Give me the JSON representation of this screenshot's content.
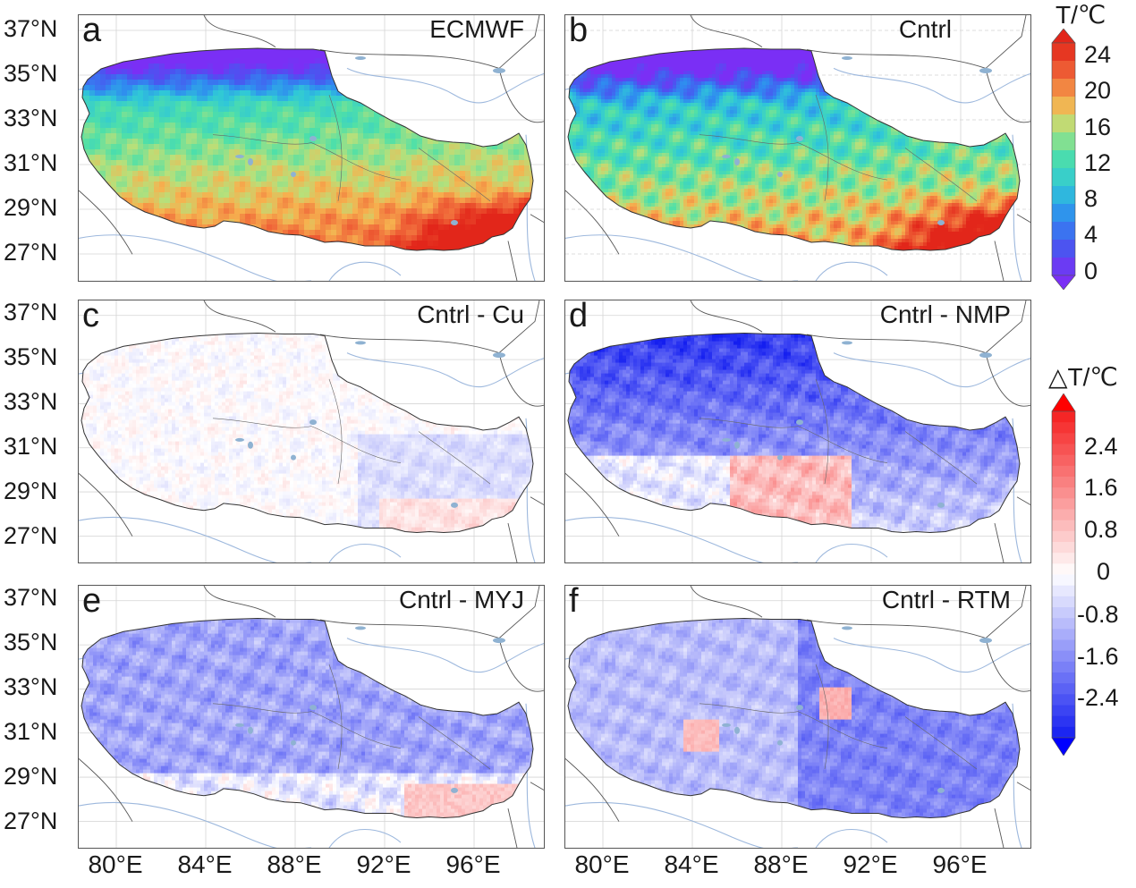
{
  "latitude_labels": [
    "37°N",
    "35°N",
    "33°N",
    "31°N",
    "29°N",
    "27°N"
  ],
  "longitude_labels": [
    "80°E",
    "84°E",
    "88°E",
    "92°E",
    "96°E"
  ],
  "panels": [
    {
      "letter": "a",
      "title": "ECMWF",
      "scale": "temperature",
      "style": "smooth"
    },
    {
      "letter": "b",
      "title": "Cntrl",
      "scale": "temperature",
      "style": "detailed"
    },
    {
      "letter": "c",
      "title": "Cntrl - Cu",
      "scale": "difference",
      "style": "cu"
    },
    {
      "letter": "d",
      "title": "Cntrl - NMP",
      "scale": "difference",
      "style": "nmp"
    },
    {
      "letter": "e",
      "title": "Cntrl - MYJ",
      "scale": "difference",
      "style": "myj"
    },
    {
      "letter": "f",
      "title": "Cntrl - RTM",
      "scale": "difference",
      "style": "rtm"
    }
  ],
  "colorbar_temperature": {
    "title": "T/℃",
    "ticks": [
      "24",
      "20",
      "16",
      "12",
      "8",
      "4",
      "0"
    ],
    "colors": [
      "#e8371e",
      "#f06a3a",
      "#f6a34f",
      "#b9e07a",
      "#5fe3a5",
      "#2fcfc8",
      "#3b8ff0",
      "#7a3ff5"
    ]
  },
  "colorbar_difference": {
    "title": "△T/℃",
    "ticks": [
      "2.4",
      "1.6",
      "0.8",
      "0",
      "-0.8",
      "-1.6",
      "-2.4"
    ],
    "colors": [
      "#ff0000",
      "#ffffff",
      "#0000ff"
    ]
  },
  "colors": {
    "land_cold": "#7a2ff5",
    "land_warm": "#e8371e",
    "river": "#8fb0d8",
    "lake": "#8fb2d2",
    "border": "#444444",
    "grid": "#c9c9c9"
  }
}
